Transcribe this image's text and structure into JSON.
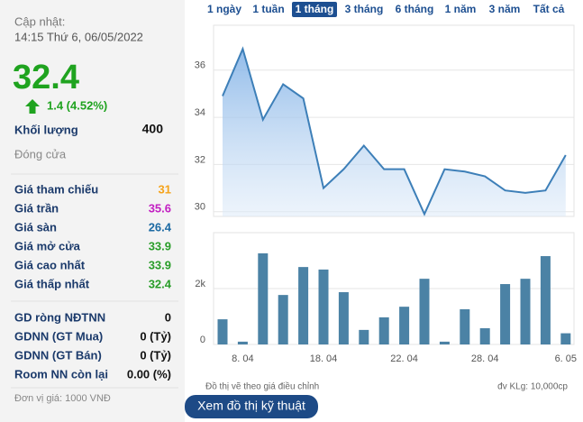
{
  "header": {
    "update_label": "Cập nhật:",
    "update_time": "14:15 Thứ 6, 06/05/2022"
  },
  "price": {
    "value": 32.4,
    "change": "1.4 (4.52%)",
    "color": "#1fa31f"
  },
  "volume": {
    "label": "Khối lượng",
    "value": 400
  },
  "status": "Đóng cửa",
  "prices": [
    {
      "label": "Giá tham chiếu",
      "value": 31,
      "color": "#f5a31a"
    },
    {
      "label": "Giá trần",
      "value": 35.6,
      "color": "#c21fc2"
    },
    {
      "label": "Giá sàn",
      "value": 26.4,
      "color": "#1c6aa3"
    },
    {
      "label": "Giá mở cửa",
      "value": 33.9,
      "color": "#2a9d2a"
    },
    {
      "label": "Giá cao nhất",
      "value": 33.9,
      "color": "#2a9d2a"
    },
    {
      "label": "Giá thấp nhất",
      "value": 32.4,
      "color": "#2a9d2a"
    }
  ],
  "foreign": [
    {
      "label": "GD ròng NĐTNN",
      "value": "0"
    },
    {
      "label": "GDNN (GT Mua)",
      "value": "0 (Tỷ)"
    },
    {
      "label": "GDNN (GT Bán)",
      "value": "0 (Tỷ)"
    },
    {
      "label": "Room NN còn lại",
      "value": "0.00 (%)"
    }
  ],
  "unit_note": "Đơn vị giá: 1000 VNĐ",
  "tabs": {
    "items": [
      "1 ngày",
      "1 tuần",
      "1 tháng",
      "3 tháng",
      "6 tháng",
      "1 năm",
      "3 năm",
      "Tất cả"
    ],
    "active": 2
  },
  "chart_data": [
    {
      "type": "line",
      "area": true,
      "color": "#3d7fb8",
      "values": [
        34.9,
        36.9,
        33.9,
        35.4,
        34.8,
        31.0,
        31.8,
        32.8,
        31.8,
        31.8,
        29.9,
        31.8,
        31.7,
        31.5,
        30.9,
        30.8,
        30.9,
        32.4
      ],
      "ylim": [
        29.8,
        37.9
      ],
      "yticks": [
        30,
        32,
        34,
        36
      ],
      "grid": true
    },
    {
      "type": "bar",
      "color": "#4b82a5",
      "categories": [
        null,
        "8. 04",
        null,
        null,
        null,
        "18. 04",
        null,
        null,
        null,
        "22. 04",
        null,
        null,
        null,
        "28. 04",
        null,
        null,
        null,
        "6. 05"
      ],
      "values": [
        900,
        100,
        3260,
        1770,
        2770,
        2680,
        1870,
        520,
        970,
        1350,
        2350,
        100,
        1260,
        580,
        2160,
        2350,
        3160,
        400
      ],
      "ylim": [
        0,
        4000
      ],
      "yticks": [
        0,
        {
          "value": 2000,
          "label": "2k"
        }
      ],
      "grid": true
    }
  ],
  "notes": {
    "adjusted": "Đồ thị vẽ theo giá điều chỉnh",
    "volume_unit": "đv KLg: 10,000cp"
  },
  "button": "Xem đồ thị kỹ thuật"
}
